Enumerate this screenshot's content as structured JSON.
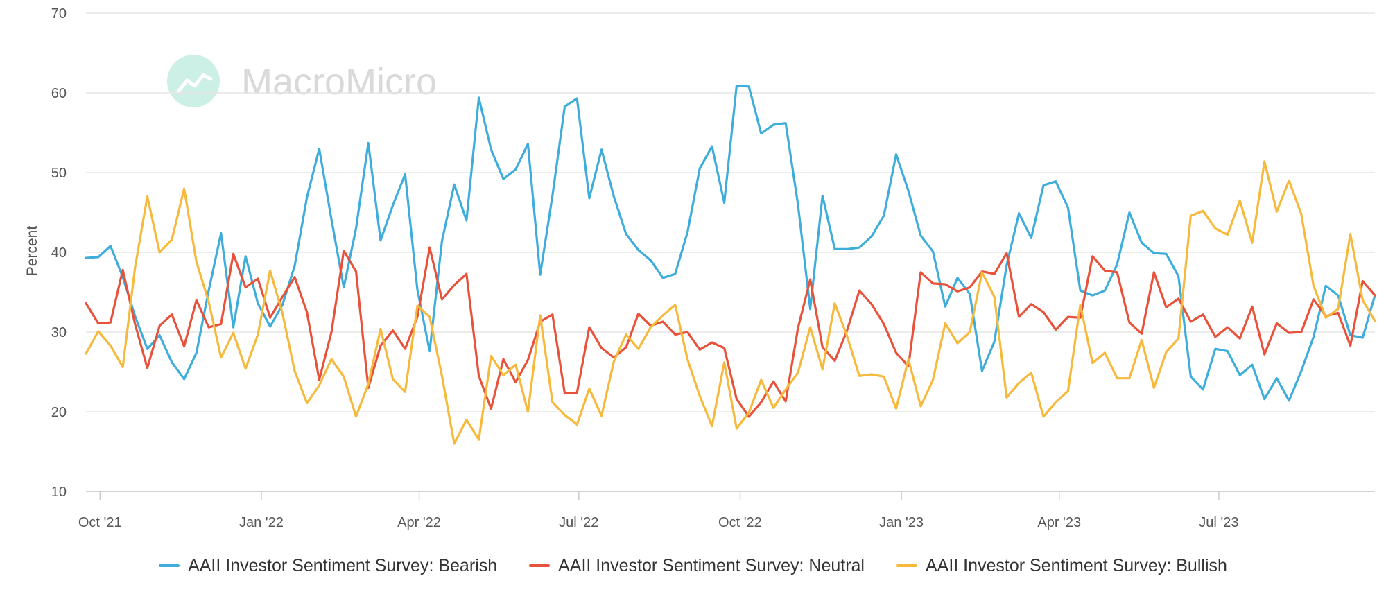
{
  "watermark": {
    "text": "MacroMicro",
    "logo_color": "#ccefe6"
  },
  "chart_data": {
    "type": "line",
    "ylabel": "Percent",
    "ylim": [
      10,
      70
    ],
    "yticks": [
      10,
      20,
      30,
      40,
      50,
      60,
      70
    ],
    "grid": true,
    "legend_position": "bottom",
    "xlim": [
      "2021-09-23",
      "2023-09-28"
    ],
    "xticks": [
      {
        "date": "2021-10-01",
        "label": "Oct '21"
      },
      {
        "date": "2022-01-01",
        "label": "Jan '22"
      },
      {
        "date": "2022-04-01",
        "label": "Apr '22"
      },
      {
        "date": "2022-07-01",
        "label": "Jul '22"
      },
      {
        "date": "2022-10-01",
        "label": "Oct '22"
      },
      {
        "date": "2023-01-01",
        "label": "Jan '23"
      },
      {
        "date": "2023-04-01",
        "label": "Apr '23"
      },
      {
        "date": "2023-07-01",
        "label": "Jul '23"
      }
    ],
    "x": [
      "2021-09-23",
      "2021-09-30",
      "2021-10-07",
      "2021-10-14",
      "2021-10-21",
      "2021-10-28",
      "2021-11-04",
      "2021-11-11",
      "2021-11-18",
      "2021-11-25",
      "2021-12-02",
      "2021-12-09",
      "2021-12-16",
      "2021-12-23",
      "2021-12-30",
      "2022-01-06",
      "2022-01-13",
      "2022-01-20",
      "2022-01-27",
      "2022-02-03",
      "2022-02-10",
      "2022-02-17",
      "2022-02-24",
      "2022-03-03",
      "2022-03-10",
      "2022-03-17",
      "2022-03-24",
      "2022-03-31",
      "2022-04-07",
      "2022-04-14",
      "2022-04-21",
      "2022-04-28",
      "2022-05-05",
      "2022-05-12",
      "2022-05-19",
      "2022-05-26",
      "2022-06-02",
      "2022-06-09",
      "2022-06-16",
      "2022-06-23",
      "2022-06-30",
      "2022-07-07",
      "2022-07-14",
      "2022-07-21",
      "2022-07-28",
      "2022-08-04",
      "2022-08-11",
      "2022-08-18",
      "2022-08-25",
      "2022-09-01",
      "2022-09-08",
      "2022-09-15",
      "2022-09-22",
      "2022-09-29",
      "2022-10-06",
      "2022-10-13",
      "2022-10-20",
      "2022-10-27",
      "2022-11-03",
      "2022-11-10",
      "2022-11-17",
      "2022-11-24",
      "2022-12-01",
      "2022-12-08",
      "2022-12-15",
      "2022-12-22",
      "2022-12-29",
      "2023-01-05",
      "2023-01-12",
      "2023-01-19",
      "2023-01-26",
      "2023-02-02",
      "2023-02-09",
      "2023-02-16",
      "2023-02-23",
      "2023-03-02",
      "2023-03-09",
      "2023-03-16",
      "2023-03-23",
      "2023-03-30",
      "2023-04-06",
      "2023-04-13",
      "2023-04-20",
      "2023-04-27",
      "2023-05-04",
      "2023-05-11",
      "2023-05-18",
      "2023-05-25",
      "2023-06-01",
      "2023-06-08",
      "2023-06-15",
      "2023-06-22",
      "2023-06-29",
      "2023-07-06",
      "2023-07-13",
      "2023-07-20",
      "2023-07-27",
      "2023-08-03",
      "2023-08-10",
      "2023-08-17",
      "2023-08-24",
      "2023-08-31",
      "2023-09-07",
      "2023-09-14",
      "2023-09-21",
      "2023-09-28"
    ],
    "series": [
      {
        "name": "AAII Investor Sentiment Survey: Bearish",
        "color": "#3eaddb",
        "values": [
          39.3,
          39.4,
          40.8,
          36.9,
          32.0,
          27.9,
          29.6,
          26.2,
          24.1,
          27.4,
          35.2,
          42.4,
          30.6,
          39.5,
          33.6,
          30.7,
          33.4,
          38.3,
          46.9,
          53.0,
          44.1,
          35.6,
          43.0,
          53.7,
          41.5,
          45.9,
          49.8,
          35.3,
          27.6,
          41.4,
          48.5,
          44.0,
          59.4,
          52.9,
          49.2,
          50.4,
          53.6,
          37.2,
          47.1,
          58.3,
          59.3,
          46.8,
          52.9,
          47.0,
          42.3,
          40.3,
          39.0,
          36.8,
          37.3,
          42.5,
          50.5,
          53.3,
          46.2,
          60.9,
          60.8,
          54.9,
          56.0,
          56.2,
          46.0,
          32.9,
          47.1,
          40.4,
          40.4,
          40.6,
          42.0,
          44.6,
          52.3,
          47.7,
          42.1,
          40.1,
          33.2,
          36.8,
          34.8,
          25.1,
          28.8,
          38.4,
          44.9,
          41.8,
          48.4,
          48.9,
          45.6,
          35.2,
          34.6,
          35.2,
          38.5,
          45.0,
          41.2,
          39.9,
          39.8,
          37.0,
          24.4,
          22.8,
          27.9,
          27.6,
          24.6,
          25.9,
          21.6,
          24.2,
          21.4,
          25.1,
          29.4,
          35.8,
          34.6,
          29.6,
          29.3,
          34.6
        ]
      },
      {
        "name": "AAII Investor Sentiment Survey: Neutral",
        "color": "#e8513a",
        "values": [
          33.6,
          31.1,
          31.2,
          37.8,
          31.0,
          25.5,
          30.8,
          32.2,
          28.2,
          34.0,
          30.6,
          31.0,
          39.8,
          35.6,
          36.7,
          31.8,
          34.4,
          36.9,
          32.5,
          24.0,
          30.0,
          40.2,
          37.6,
          23.0,
          28.3,
          30.2,
          27.9,
          31.9,
          40.6,
          34.1,
          35.9,
          37.3,
          24.5,
          20.4,
          26.6,
          23.7,
          26.5,
          31.3,
          32.2,
          22.3,
          22.4,
          30.6,
          28.0,
          26.8,
          28.1,
          32.3,
          30.8,
          31.3,
          29.7,
          30.0,
          27.8,
          28.7,
          28.0,
          21.6,
          19.4,
          21.2,
          23.8,
          21.3,
          30.5,
          36.6,
          28.1,
          26.4,
          30.2,
          35.2,
          33.5,
          31.0,
          27.4,
          25.7,
          37.5,
          36.1,
          36.0,
          35.1,
          35.6,
          37.6,
          37.3,
          39.9,
          31.9,
          33.5,
          32.5,
          30.3,
          31.9,
          31.8,
          39.5,
          37.7,
          37.5,
          31.2,
          29.8,
          37.5,
          33.1,
          34.2,
          31.3,
          32.2,
          29.4,
          30.6,
          29.2,
          33.2,
          27.2,
          31.1,
          29.9,
          30.0,
          34.1,
          32.0,
          32.4,
          28.3,
          36.4,
          34.6
        ]
      },
      {
        "name": "AAII Investor Sentiment Survey: Bullish",
        "color": "#f6b93b",
        "values": [
          27.3,
          30.1,
          28.3,
          25.6,
          38.1,
          47.0,
          40.0,
          41.6,
          48.0,
          38.8,
          33.8,
          26.8,
          29.9,
          25.4,
          29.7,
          37.7,
          32.4,
          25.1,
          21.1,
          23.3,
          26.6,
          24.4,
          19.4,
          23.5,
          30.4,
          24.1,
          22.5,
          33.3,
          31.9,
          24.5,
          16.0,
          19.0,
          16.5,
          27.0,
          24.6,
          25.9,
          20.0,
          32.1,
          21.2,
          19.6,
          18.4,
          22.9,
          19.5,
          26.3,
          29.7,
          27.9,
          30.6,
          32.1,
          33.4,
          26.6,
          22.0,
          18.2,
          26.2,
          17.9,
          19.9,
          24.0,
          20.5,
          22.8,
          24.9,
          30.6,
          25.3,
          33.6,
          29.5,
          24.5,
          24.7,
          24.4,
          20.4,
          26.6,
          20.7,
          24.0,
          31.1,
          28.6,
          30.0,
          37.5,
          34.4,
          21.8,
          23.6,
          24.9,
          19.4,
          21.2,
          22.6,
          33.4,
          26.1,
          27.4,
          24.2,
          24.2,
          29.0,
          23.0,
          27.5,
          29.2,
          44.6,
          45.2,
          43.0,
          42.2,
          46.5,
          41.2,
          51.4,
          45.1,
          49.0,
          44.8,
          35.8,
          31.8,
          32.9,
          42.3,
          34.0,
          31.4
        ]
      }
    ]
  }
}
